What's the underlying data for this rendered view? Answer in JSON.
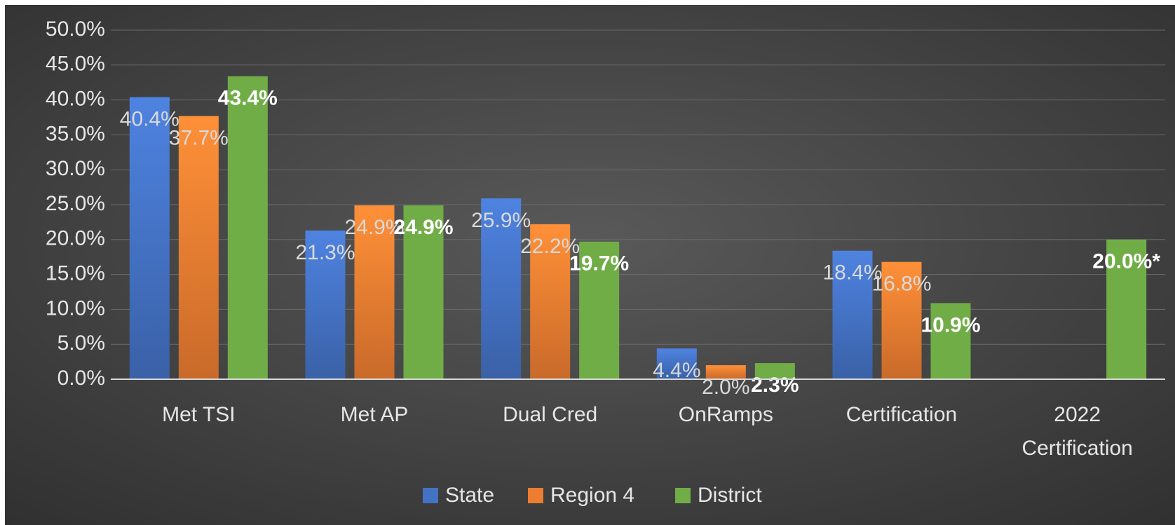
{
  "chart_data": {
    "type": "bar",
    "categories": [
      "Met TSI",
      "Met AP",
      "Dual Cred",
      "OnRamps",
      "Certification",
      "2022 Certification"
    ],
    "series": [
      {
        "name": "State",
        "color": "#4472c4",
        "values": [
          40.4,
          21.3,
          25.9,
          4.4,
          18.4,
          null
        ],
        "value_labels": [
          "40.4%",
          "21.3%",
          "25.9%",
          "4.4%",
          "18.4%",
          null
        ]
      },
      {
        "name": "Region 4",
        "color": "#ed7d31",
        "values": [
          37.7,
          24.9,
          22.2,
          2.0,
          16.8,
          null
        ],
        "value_labels": [
          "37.7%",
          "24.9%",
          "22.2%",
          "2.0%",
          "16.8%",
          null
        ]
      },
      {
        "name": "District",
        "color": "#70ad47",
        "values": [
          43.4,
          24.9,
          19.7,
          2.3,
          10.9,
          20.0
        ],
        "value_labels": [
          "43.4%",
          "24.9%",
          "19.7%",
          "2.3%",
          "10.9%",
          "20.0%*"
        ]
      }
    ],
    "ylim": [
      0,
      50
    ],
    "yticks": [
      {
        "value": 0,
        "label": "0.0%"
      },
      {
        "value": 5,
        "label": "5.0%"
      },
      {
        "value": 10,
        "label": "10.0%"
      },
      {
        "value": 15,
        "label": "15.0%"
      },
      {
        "value": 20,
        "label": "20.0%"
      },
      {
        "value": 25,
        "label": "25.0%"
      },
      {
        "value": 30,
        "label": "30.0%"
      },
      {
        "value": 35,
        "label": "35.0%"
      },
      {
        "value": 40,
        "label": "40.0%"
      },
      {
        "value": 45,
        "label": "45.0%"
      },
      {
        "value": 50,
        "label": "50.0%"
      }
    ],
    "grid": true,
    "legend": "bottom"
  }
}
